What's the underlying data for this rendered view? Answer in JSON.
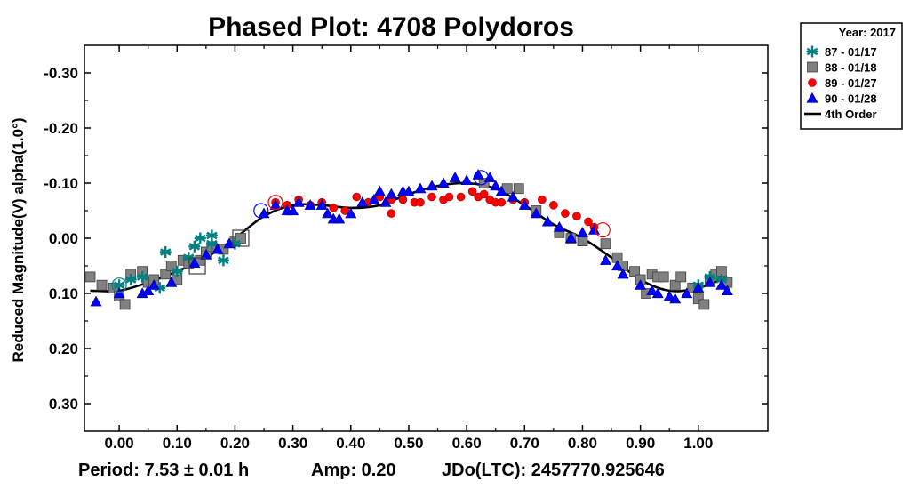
{
  "chart_data": {
    "type": "scatter",
    "title": "Phased Plot: 4708 Polydoros",
    "ylabel": "Reduced Magnitude(V) alpha(1.0°)",
    "xlim": [
      -0.06,
      1.12
    ],
    "ylim": [
      -0.35,
      0.35
    ],
    "y_inverted": true,
    "x_ticks": [
      "0.00",
      "0.10",
      "0.20",
      "0.30",
      "0.40",
      "0.50",
      "0.60",
      "0.70",
      "0.80",
      "0.90",
      "1.00"
    ],
    "y_ticks": [
      "-0.30",
      "-0.20",
      "-0.10",
      "0.00",
      "0.10",
      "0.20",
      "0.30"
    ],
    "legend": {
      "title": "Year: 2017",
      "placement": "outside-top-right",
      "entries": [
        {
          "label": "87 - 01/17",
          "marker": "asterisk",
          "color": "#008080"
        },
        {
          "label": "88 - 01/18",
          "marker": "square",
          "color": "#808080"
        },
        {
          "label": "89 - 01/27",
          "marker": "circle",
          "color": "#ff0000"
        },
        {
          "label": "90 - 01/28",
          "marker": "triangle",
          "color": "#0000ff"
        },
        {
          "label": "4th Order",
          "marker": "line",
          "color": "#000000"
        }
      ]
    },
    "footer": {
      "period": "Period: 7.53 ± 0.01 h",
      "amp": "Amp: 0.20",
      "jdo": "JDo(LTC): 2457770.925646"
    },
    "series": [
      {
        "name": "87 - 01/17",
        "marker": "asterisk",
        "color": "#008080",
        "points": [
          [
            0.0,
            0.085
          ],
          [
            0.02,
            0.075
          ],
          [
            0.04,
            0.07
          ],
          [
            0.07,
            0.09
          ],
          [
            0.08,
            0.025
          ],
          [
            0.1,
            0.06
          ],
          [
            0.12,
            0.035
          ],
          [
            0.13,
            0.015
          ],
          [
            0.14,
            0.0
          ],
          [
            0.16,
            0.01
          ],
          [
            0.16,
            -0.005
          ],
          [
            0.18,
            0.04
          ],
          [
            0.2,
            0.01
          ],
          [
            1.0,
            0.085
          ],
          [
            1.02,
            0.07
          ],
          [
            1.04,
            0.075
          ]
        ]
      },
      {
        "name": "88 - 01/18",
        "marker": "square",
        "color": "#808080",
        "points": [
          [
            -0.05,
            0.07
          ],
          [
            -0.03,
            0.085
          ],
          [
            -0.01,
            0.09
          ],
          [
            0.0,
            0.105
          ],
          [
            0.01,
            0.12
          ],
          [
            0.02,
            0.065
          ],
          [
            0.04,
            0.06
          ],
          [
            0.05,
            0.08
          ],
          [
            0.06,
            0.075
          ],
          [
            0.08,
            0.065
          ],
          [
            0.09,
            0.05
          ],
          [
            0.1,
            0.075
          ],
          [
            0.11,
            0.04
          ],
          [
            0.12,
            0.045
          ],
          [
            0.14,
            0.04
          ],
          [
            0.15,
            0.025
          ],
          [
            0.16,
            0.015
          ],
          [
            0.18,
            0.02
          ],
          [
            0.2,
            0.005
          ],
          [
            0.21,
            0.0
          ],
          [
            0.63,
            -0.1
          ],
          [
            0.67,
            -0.09
          ],
          [
            0.69,
            -0.09
          ],
          [
            0.72,
            -0.05
          ],
          [
            0.76,
            -0.01
          ],
          [
            0.78,
            0.0
          ],
          [
            0.8,
            0.005
          ],
          [
            0.84,
            0.01
          ],
          [
            0.86,
            0.035
          ],
          [
            0.87,
            0.05
          ],
          [
            0.89,
            0.06
          ],
          [
            0.9,
            0.075
          ],
          [
            0.91,
            0.1
          ],
          [
            0.92,
            0.065
          ],
          [
            0.93,
            0.07
          ],
          [
            0.94,
            0.07
          ],
          [
            0.96,
            0.085
          ],
          [
            0.97,
            0.07
          ],
          [
            0.99,
            0.09
          ],
          [
            1.0,
            0.11
          ],
          [
            1.01,
            0.12
          ],
          [
            1.02,
            0.075
          ],
          [
            1.03,
            0.065
          ],
          [
            1.04,
            0.06
          ],
          [
            1.05,
            0.08
          ]
        ]
      },
      {
        "name": "89 - 01/27",
        "marker": "circle",
        "color": "#ff0000",
        "points": [
          [
            0.27,
            -0.065
          ],
          [
            0.29,
            -0.06
          ],
          [
            0.31,
            -0.07
          ],
          [
            0.33,
            -0.06
          ],
          [
            0.35,
            -0.065
          ],
          [
            0.37,
            -0.055
          ],
          [
            0.39,
            -0.05
          ],
          [
            0.41,
            -0.075
          ],
          [
            0.43,
            -0.065
          ],
          [
            0.45,
            -0.075
          ],
          [
            0.47,
            -0.07
          ],
          [
            0.47,
            -0.045
          ],
          [
            0.49,
            -0.07
          ],
          [
            0.51,
            -0.065
          ],
          [
            0.52,
            -0.065
          ],
          [
            0.54,
            -0.075
          ],
          [
            0.56,
            -0.07
          ],
          [
            0.57,
            -0.075
          ],
          [
            0.59,
            -0.075
          ],
          [
            0.61,
            -0.085
          ],
          [
            0.62,
            -0.075
          ],
          [
            0.63,
            -0.08
          ],
          [
            0.64,
            -0.07
          ],
          [
            0.65,
            -0.065
          ],
          [
            0.66,
            -0.065
          ],
          [
            0.68,
            -0.07
          ],
          [
            0.7,
            -0.065
          ],
          [
            0.73,
            -0.07
          ],
          [
            0.75,
            -0.06
          ],
          [
            0.77,
            -0.045
          ],
          [
            0.79,
            -0.04
          ],
          [
            0.81,
            -0.03
          ],
          [
            0.82,
            -0.02
          ]
        ]
      },
      {
        "name": "90 - 01/28",
        "marker": "triangle",
        "color": "#0000ff",
        "points": [
          [
            -0.04,
            0.115
          ],
          [
            0.0,
            0.1
          ],
          [
            0.04,
            0.1
          ],
          [
            0.05,
            0.095
          ],
          [
            0.06,
            0.085
          ],
          [
            0.09,
            0.08
          ],
          [
            0.13,
            0.045
          ],
          [
            0.15,
            0.03
          ],
          [
            0.17,
            0.02
          ],
          [
            0.19,
            0.01
          ],
          [
            0.25,
            -0.045
          ],
          [
            0.27,
            -0.06
          ],
          [
            0.29,
            -0.05
          ],
          [
            0.3,
            -0.05
          ],
          [
            0.31,
            -0.065
          ],
          [
            0.33,
            -0.06
          ],
          [
            0.35,
            -0.06
          ],
          [
            0.36,
            -0.045
          ],
          [
            0.37,
            -0.035
          ],
          [
            0.38,
            -0.035
          ],
          [
            0.4,
            -0.045
          ],
          [
            0.42,
            -0.065
          ],
          [
            0.44,
            -0.07
          ],
          [
            0.45,
            -0.085
          ],
          [
            0.46,
            -0.065
          ],
          [
            0.47,
            -0.08
          ],
          [
            0.49,
            -0.085
          ],
          [
            0.5,
            -0.085
          ],
          [
            0.52,
            -0.09
          ],
          [
            0.54,
            -0.095
          ],
          [
            0.56,
            -0.1
          ],
          [
            0.58,
            -0.11
          ],
          [
            0.6,
            -0.105
          ],
          [
            0.62,
            -0.115
          ],
          [
            0.64,
            -0.11
          ],
          [
            0.65,
            -0.095
          ],
          [
            0.66,
            -0.085
          ],
          [
            0.68,
            -0.075
          ],
          [
            0.7,
            -0.06
          ],
          [
            0.72,
            -0.045
          ],
          [
            0.74,
            -0.03
          ],
          [
            0.76,
            -0.02
          ],
          [
            0.78,
            0.0
          ],
          [
            0.8,
            -0.01
          ],
          [
            0.82,
            -0.015
          ],
          [
            0.84,
            0.04
          ],
          [
            0.86,
            0.05
          ],
          [
            0.87,
            0.065
          ],
          [
            0.9,
            0.085
          ],
          [
            0.92,
            0.095
          ],
          [
            0.93,
            0.1
          ],
          [
            0.95,
            0.105
          ],
          [
            0.96,
            0.11
          ],
          [
            0.98,
            0.1
          ],
          [
            1.0,
            0.09
          ],
          [
            1.02,
            0.08
          ],
          [
            1.04,
            0.085
          ],
          [
            1.05,
            0.095
          ]
        ]
      },
      {
        "name": "4th Order",
        "marker": "line",
        "color": "#000000",
        "points": [
          [
            -0.05,
            0.095
          ],
          [
            0.0,
            0.095
          ],
          [
            0.05,
            0.08
          ],
          [
            0.1,
            0.06
          ],
          [
            0.15,
            0.035
          ],
          [
            0.2,
            0.0
          ],
          [
            0.25,
            -0.04
          ],
          [
            0.3,
            -0.06
          ],
          [
            0.35,
            -0.06
          ],
          [
            0.4,
            -0.055
          ],
          [
            0.45,
            -0.06
          ],
          [
            0.5,
            -0.08
          ],
          [
            0.55,
            -0.095
          ],
          [
            0.6,
            -0.1
          ],
          [
            0.65,
            -0.09
          ],
          [
            0.7,
            -0.06
          ],
          [
            0.75,
            -0.025
          ],
          [
            0.8,
            0.0
          ],
          [
            0.85,
            0.035
          ],
          [
            0.9,
            0.075
          ],
          [
            0.95,
            0.095
          ],
          [
            1.0,
            0.09
          ],
          [
            1.05,
            0.07
          ]
        ]
      }
    ],
    "highlighted_points": [
      {
        "series": "87 - 01/17",
        "x": 0.0,
        "y": 0.085
      },
      {
        "series": "88 - 01/18",
        "x": 0.135,
        "y": 0.05
      },
      {
        "series": "88 - 01/18",
        "x": 0.21,
        "y": 0.0
      },
      {
        "series": "90 - 01/28",
        "x": 0.245,
        "y": -0.05
      },
      {
        "series": "89 - 01/27",
        "x": 0.27,
        "y": -0.065
      },
      {
        "series": "90 - 01/28",
        "x": 0.625,
        "y": -0.11
      },
      {
        "series": "89 - 01/27",
        "x": 0.835,
        "y": -0.015
      }
    ]
  }
}
